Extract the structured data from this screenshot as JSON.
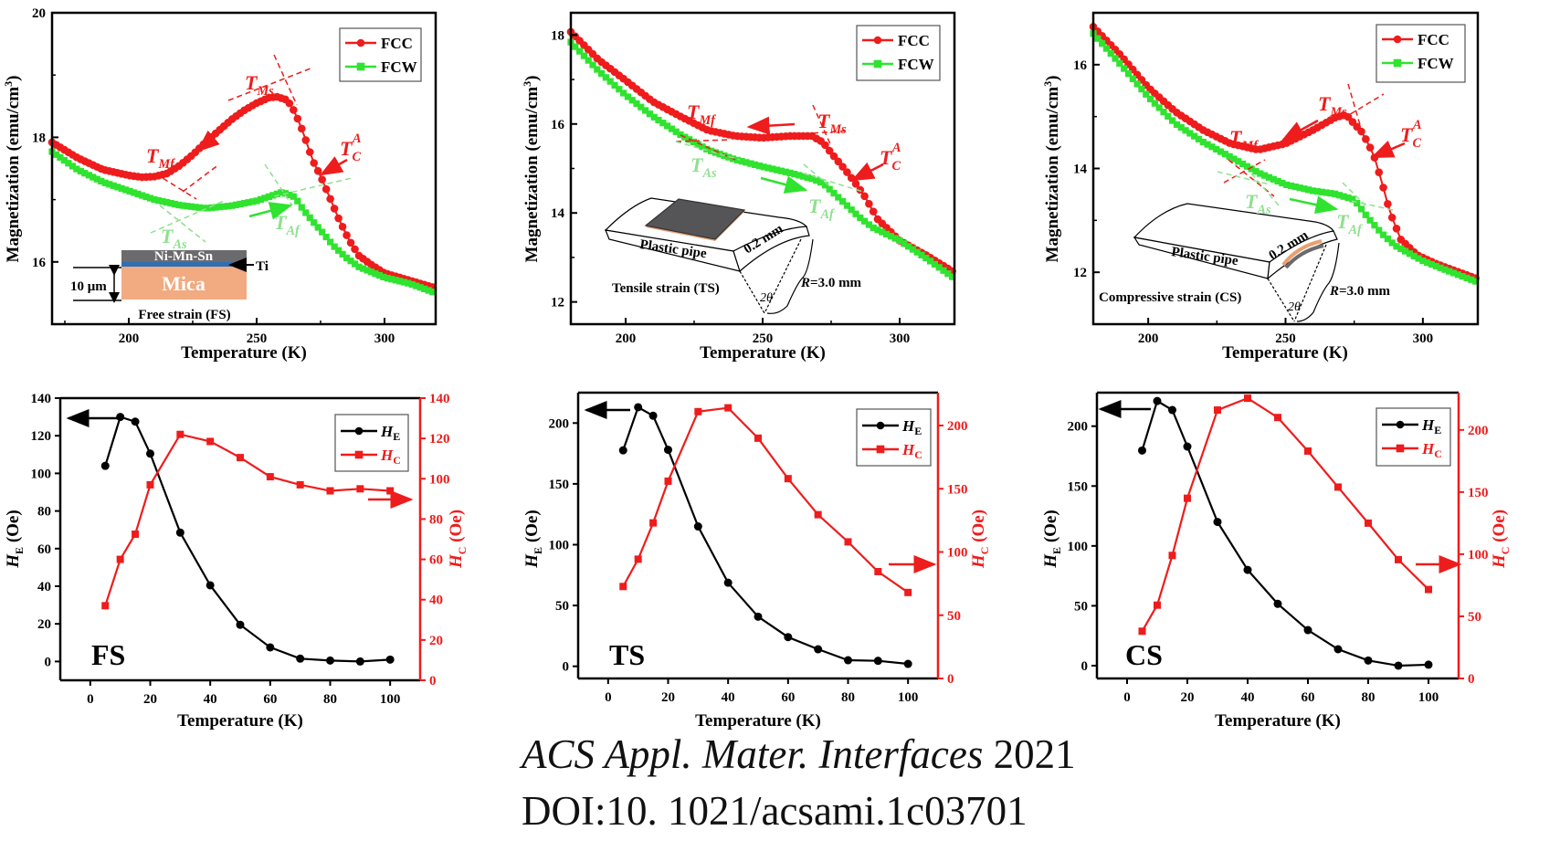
{
  "chart_data": [
    {
      "type": "line",
      "panel": "FS-MT",
      "xlabel": "Temperature (K)",
      "ylabel": {
        "text": "Magnetization (emu/cm",
        "sup": "3",
        "end": ")"
      },
      "xlim": [
        170,
        320
      ],
      "ylim": [
        15,
        20
      ],
      "xticks": [
        200,
        250,
        300
      ],
      "xminor": [
        175,
        225,
        275
      ],
      "yticks": [
        16,
        18,
        20
      ],
      "yminor": [
        15,
        17,
        19
      ],
      "legend_position": "top-right",
      "series": [
        {
          "name": "FCC",
          "color": "#ee1c1c",
          "marker": "circle",
          "x": [
            170,
            180,
            190,
            200,
            205,
            210,
            215,
            220,
            225,
            230,
            235,
            240,
            245,
            250,
            255,
            258,
            262,
            265,
            268,
            272,
            275,
            278,
            282,
            286,
            290,
            295,
            300,
            310,
            320
          ],
          "y": [
            17.92,
            17.67,
            17.48,
            17.39,
            17.36,
            17.37,
            17.42,
            17.55,
            17.72,
            17.92,
            18.1,
            18.28,
            18.43,
            18.55,
            18.64,
            18.65,
            18.6,
            18.4,
            18.1,
            17.62,
            17.38,
            17.09,
            16.7,
            16.36,
            16.1,
            15.95,
            15.82,
            15.7,
            15.58
          ]
        },
        {
          "name": "FCW",
          "color": "#2fe32f",
          "marker": "square",
          "x": [
            170,
            180,
            190,
            200,
            210,
            220,
            230,
            240,
            250,
            255,
            260,
            265,
            268,
            272,
            276,
            280,
            285,
            290,
            300,
            310,
            320
          ],
          "y": [
            17.77,
            17.48,
            17.28,
            17.14,
            17.0,
            16.91,
            16.86,
            16.9,
            16.98,
            17.05,
            17.12,
            17.04,
            16.85,
            16.65,
            16.46,
            16.26,
            16.07,
            15.92,
            15.75,
            15.65,
            15.5
          ]
        }
      ],
      "annotations": [
        {
          "main": "T",
          "sub": "Mf"
        },
        {
          "main": "T",
          "sub": "Ms"
        },
        {
          "main": "T",
          "sub": "C",
          "sup": "A"
        },
        {
          "main": "T",
          "sub": "As"
        },
        {
          "main": "T",
          "sub": "Af"
        }
      ],
      "inset": {
        "layer_top": "Ni-Mn-Sn",
        "layer_ti": "Ti",
        "substrate": "Mica",
        "thickness": "10 μm",
        "caption": "Free strain (FS)"
      }
    },
    {
      "type": "line",
      "panel": "TS-MT",
      "xlabel": "Temperature (K)",
      "ylabel": {
        "text": "Magnetization (emu/cm",
        "sup": "3",
        "end": ")"
      },
      "xlim": [
        180,
        320
      ],
      "ylim": [
        11.5,
        18.5
      ],
      "xticks": [
        200,
        250,
        300
      ],
      "xminor": [
        225,
        275
      ],
      "yticks": [
        12,
        14,
        16,
        18
      ],
      "yminor": [
        13,
        15,
        17
      ],
      "legend_position": "top-right",
      "series": [
        {
          "name": "FCC",
          "color": "#ee1c1c",
          "marker": "circle",
          "x": [
            180,
            190,
            200,
            210,
            220,
            230,
            240,
            250,
            260,
            268,
            272,
            275,
            280,
            283,
            287,
            292,
            300,
            310,
            320
          ],
          "y": [
            18.07,
            17.45,
            16.98,
            16.5,
            16.17,
            15.86,
            15.73,
            15.69,
            15.73,
            15.73,
            15.59,
            15.35,
            14.98,
            14.74,
            14.4,
            13.86,
            13.38,
            13.04,
            12.66
          ]
        },
        {
          "name": "FCW",
          "color": "#2fe32f",
          "marker": "square",
          "x": [
            180,
            190,
            200,
            210,
            220,
            230,
            240,
            250,
            260,
            268,
            272,
            278,
            285,
            290,
            300,
            310,
            320
          ],
          "y": [
            17.84,
            17.2,
            16.65,
            16.17,
            15.76,
            15.42,
            15.2,
            15.04,
            14.9,
            14.77,
            14.67,
            14.33,
            13.92,
            13.68,
            13.38,
            12.97,
            12.53
          ]
        }
      ],
      "annotations": [
        {
          "main": "T",
          "sub": "Mf"
        },
        {
          "main": "T",
          "sub": "Ms"
        },
        {
          "main": "T",
          "sub": "C",
          "sup": "A"
        },
        {
          "main": "T",
          "sub": "As"
        },
        {
          "main": "T",
          "sub": "Af"
        }
      ],
      "inset": {
        "pipe": "Plastic pipe",
        "thickness": "0.2 mm",
        "angle": "2θ",
        "radius_symbol": "R",
        "radius_value": "=3.0 mm",
        "caption": "Tensile strain (TS)"
      }
    },
    {
      "type": "line",
      "panel": "CS-MT",
      "xlabel": "Temperature (K)",
      "ylabel": {
        "text": "Magnetization (emu/cm",
        "sup": "3",
        "end": ")"
      },
      "xlim": [
        180,
        320
      ],
      "ylim": [
        11,
        17
      ],
      "xticks": [
        200,
        250,
        300
      ],
      "xminor": [
        225,
        275
      ],
      "yticks": [
        12,
        14,
        16
      ],
      "yminor": [
        11,
        13,
        15,
        17
      ],
      "legend_position": "top-right",
      "series": [
        {
          "name": "FCC",
          "color": "#ee1c1c",
          "marker": "circle",
          "x": [
            180,
            190,
            200,
            210,
            220,
            230,
            240,
            250,
            260,
            268,
            272,
            275,
            278,
            282,
            285,
            288,
            292,
            298,
            305,
            320
          ],
          "y": [
            16.73,
            16.18,
            15.56,
            15.09,
            14.74,
            14.48,
            14.36,
            14.48,
            14.74,
            14.98,
            15.04,
            14.86,
            14.69,
            14.28,
            13.75,
            13.16,
            12.63,
            12.33,
            12.16,
            11.87
          ]
        },
        {
          "name": "FCW",
          "color": "#2fe32f",
          "marker": "square",
          "x": [
            180,
            190,
            200,
            210,
            220,
            230,
            240,
            250,
            260,
            268,
            275,
            280,
            285,
            290,
            300,
            310,
            320
          ],
          "y": [
            16.6,
            16.0,
            15.38,
            14.86,
            14.51,
            14.22,
            13.92,
            13.69,
            13.57,
            13.51,
            13.4,
            13.05,
            12.75,
            12.51,
            12.22,
            12.01,
            11.81
          ]
        }
      ],
      "annotations": [
        {
          "main": "T",
          "sub": "Mf"
        },
        {
          "main": "T",
          "sub": "Ms"
        },
        {
          "main": "T",
          "sub": "C",
          "sup": "A"
        },
        {
          "main": "T",
          "sub": "As"
        },
        {
          "main": "T",
          "sub": "Af"
        }
      ],
      "inset": {
        "pipe": "Plastic pipe",
        "thickness": "0.2 mm",
        "angle": "2θ",
        "radius_symbol": "R",
        "radius_value": "=3.0 mm",
        "caption": "Compressive strain (CS)"
      }
    },
    {
      "type": "line",
      "panel": "FS",
      "label": "FS",
      "xlabel": "Temperature (K)",
      "ylabel_left": {
        "main": "H",
        "sub": "E",
        "rest": " (Oe)"
      },
      "ylabel_right": {
        "main": "H",
        "sub": "C",
        "rest": " (Oe)"
      },
      "xlim": [
        -10,
        110
      ],
      "ylim_left": [
        -10,
        140
      ],
      "ylim_right": [
        0,
        140
      ],
      "xticks": [
        0,
        20,
        40,
        60,
        80,
        100
      ],
      "yticks_left": [
        0,
        20,
        40,
        60,
        80,
        100,
        120,
        140
      ],
      "yticks_right": [
        0,
        20,
        40,
        60,
        80,
        100,
        120,
        140
      ],
      "legend_position": "top-right",
      "x": [
        5,
        10,
        15,
        20,
        30,
        40,
        50,
        60,
        70,
        80,
        90,
        100
      ],
      "series": [
        {
          "name": {
            "main": "H",
            "sub": "E"
          },
          "axis": "left",
          "color": "#000000",
          "marker": "circle",
          "values": [
            104,
            130,
            127.5,
            110.5,
            68.5,
            40.5,
            19.5,
            7.5,
            1.5,
            0.5,
            0,
            1
          ]
        },
        {
          "name": {
            "main": "H",
            "sub": "C"
          },
          "axis": "right",
          "color": "#ee1c1c",
          "marker": "square",
          "values": [
            37,
            60,
            72.5,
            97,
            122,
            118.5,
            110.5,
            101,
            97,
            94,
            95,
            94
          ]
        }
      ]
    },
    {
      "type": "line",
      "panel": "TS",
      "label": "TS",
      "xlabel": "Temperature (K)",
      "ylabel_left": {
        "main": "H",
        "sub": "E",
        "rest": " (Oe)"
      },
      "ylabel_right": {
        "main": "H",
        "sub": "C",
        "rest": " (Oe)"
      },
      "xlim": [
        -10,
        110
      ],
      "ylim_left": [
        -10,
        225
      ],
      "ylim_right": [
        0,
        226
      ],
      "xticks": [
        0,
        20,
        40,
        60,
        80,
        100
      ],
      "yticks_left": [
        0,
        50,
        100,
        150,
        200
      ],
      "yticks_right": [
        0,
        50,
        100,
        150,
        200
      ],
      "legend_position": "top-right",
      "x": [
        5,
        10,
        15,
        20,
        30,
        40,
        50,
        60,
        70,
        80,
        90,
        100
      ],
      "series": [
        {
          "name": {
            "main": "H",
            "sub": "E"
          },
          "axis": "left",
          "color": "#000000",
          "marker": "circle",
          "values": [
            177.6,
            213,
            206,
            178,
            115,
            68.7,
            40.8,
            24,
            14,
            5,
            4.5,
            2
          ]
        },
        {
          "name": {
            "main": "H",
            "sub": "C"
          },
          "axis": "right",
          "color": "#ee1c1c",
          "marker": "square",
          "values": [
            72.7,
            94.3,
            123,
            156,
            211,
            214,
            190,
            158,
            129.5,
            108,
            84.5,
            68
          ]
        }
      ]
    },
    {
      "type": "line",
      "panel": "CS",
      "label": "CS",
      "xlabel": "Temperature (K)",
      "ylabel_left": {
        "main": "H",
        "sub": "E",
        "rest": " (Oe)"
      },
      "ylabel_right": {
        "main": "H",
        "sub": "C",
        "rest": " (Oe)"
      },
      "xlim": [
        -10,
        110
      ],
      "ylim_left": [
        -10.7,
        228
      ],
      "ylim_right": [
        0,
        230
      ],
      "xticks": [
        0,
        20,
        40,
        60,
        80,
        100
      ],
      "yticks_left": [
        0,
        50,
        100,
        150,
        200
      ],
      "yticks_right": [
        0,
        50,
        100,
        150,
        200
      ],
      "legend_position": "top-right",
      "x": [
        5,
        10,
        15,
        20,
        30,
        40,
        50,
        60,
        70,
        80,
        90,
        100
      ],
      "series": [
        {
          "name": {
            "main": "H",
            "sub": "E"
          },
          "axis": "left",
          "color": "#000000",
          "marker": "circle",
          "values": [
            179.7,
            221,
            213.5,
            183,
            120,
            80,
            51.6,
            29.7,
            13.7,
            4.3,
            0,
            0.8
          ]
        },
        {
          "name": {
            "main": "H",
            "sub": "C"
          },
          "axis": "right",
          "color": "#ee1c1c",
          "marker": "square",
          "values": [
            38,
            59,
            99,
            145,
            216,
            225.5,
            210,
            183,
            154,
            125,
            95.6,
            71.6
          ]
        }
      ]
    }
  ],
  "citation": {
    "journal": "ACS Appl. Mater. Interfaces",
    "year": "2021",
    "doi": "DOI:10. 1021/acsami.1c03701"
  },
  "colors": {
    "red": "#ee1c1c",
    "green": "#2fe32f",
    "green_annotation": "#8fe08f"
  }
}
